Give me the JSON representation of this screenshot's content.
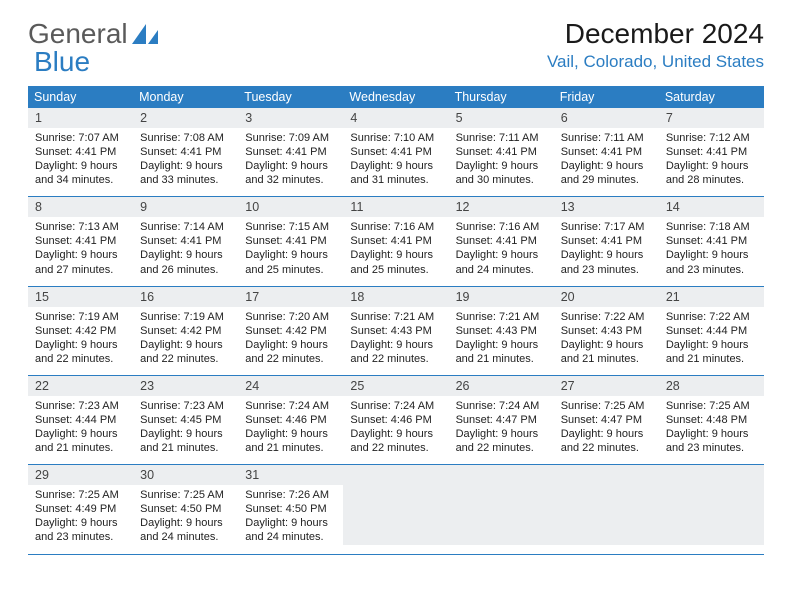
{
  "logo": {
    "word1": "General",
    "word2": "Blue",
    "word1_color": "#5a5a5a",
    "word2_color": "#2b7dc2",
    "icon_color": "#2b7dc2"
  },
  "title": "December 2024",
  "location": "Vail, Colorado, United States",
  "header_bar_color": "#2b7dc2",
  "daynum_bg": "#eceef0",
  "border_color": "#2b7dc2",
  "font_family": "Arial",
  "weekdays": [
    "Sunday",
    "Monday",
    "Tuesday",
    "Wednesday",
    "Thursday",
    "Friday",
    "Saturday"
  ],
  "weeks": [
    [
      {
        "n": "1",
        "sr": "Sunrise: 7:07 AM",
        "ss": "Sunset: 4:41 PM",
        "d1": "Daylight: 9 hours",
        "d2": "and 34 minutes."
      },
      {
        "n": "2",
        "sr": "Sunrise: 7:08 AM",
        "ss": "Sunset: 4:41 PM",
        "d1": "Daylight: 9 hours",
        "d2": "and 33 minutes."
      },
      {
        "n": "3",
        "sr": "Sunrise: 7:09 AM",
        "ss": "Sunset: 4:41 PM",
        "d1": "Daylight: 9 hours",
        "d2": "and 32 minutes."
      },
      {
        "n": "4",
        "sr": "Sunrise: 7:10 AM",
        "ss": "Sunset: 4:41 PM",
        "d1": "Daylight: 9 hours",
        "d2": "and 31 minutes."
      },
      {
        "n": "5",
        "sr": "Sunrise: 7:11 AM",
        "ss": "Sunset: 4:41 PM",
        "d1": "Daylight: 9 hours",
        "d2": "and 30 minutes."
      },
      {
        "n": "6",
        "sr": "Sunrise: 7:11 AM",
        "ss": "Sunset: 4:41 PM",
        "d1": "Daylight: 9 hours",
        "d2": "and 29 minutes."
      },
      {
        "n": "7",
        "sr": "Sunrise: 7:12 AM",
        "ss": "Sunset: 4:41 PM",
        "d1": "Daylight: 9 hours",
        "d2": "and 28 minutes."
      }
    ],
    [
      {
        "n": "8",
        "sr": "Sunrise: 7:13 AM",
        "ss": "Sunset: 4:41 PM",
        "d1": "Daylight: 9 hours",
        "d2": "and 27 minutes."
      },
      {
        "n": "9",
        "sr": "Sunrise: 7:14 AM",
        "ss": "Sunset: 4:41 PM",
        "d1": "Daylight: 9 hours",
        "d2": "and 26 minutes."
      },
      {
        "n": "10",
        "sr": "Sunrise: 7:15 AM",
        "ss": "Sunset: 4:41 PM",
        "d1": "Daylight: 9 hours",
        "d2": "and 25 minutes."
      },
      {
        "n": "11",
        "sr": "Sunrise: 7:16 AM",
        "ss": "Sunset: 4:41 PM",
        "d1": "Daylight: 9 hours",
        "d2": "and 25 minutes."
      },
      {
        "n": "12",
        "sr": "Sunrise: 7:16 AM",
        "ss": "Sunset: 4:41 PM",
        "d1": "Daylight: 9 hours",
        "d2": "and 24 minutes."
      },
      {
        "n": "13",
        "sr": "Sunrise: 7:17 AM",
        "ss": "Sunset: 4:41 PM",
        "d1": "Daylight: 9 hours",
        "d2": "and 23 minutes."
      },
      {
        "n": "14",
        "sr": "Sunrise: 7:18 AM",
        "ss": "Sunset: 4:41 PM",
        "d1": "Daylight: 9 hours",
        "d2": "and 23 minutes."
      }
    ],
    [
      {
        "n": "15",
        "sr": "Sunrise: 7:19 AM",
        "ss": "Sunset: 4:42 PM",
        "d1": "Daylight: 9 hours",
        "d2": "and 22 minutes."
      },
      {
        "n": "16",
        "sr": "Sunrise: 7:19 AM",
        "ss": "Sunset: 4:42 PM",
        "d1": "Daylight: 9 hours",
        "d2": "and 22 minutes."
      },
      {
        "n": "17",
        "sr": "Sunrise: 7:20 AM",
        "ss": "Sunset: 4:42 PM",
        "d1": "Daylight: 9 hours",
        "d2": "and 22 minutes."
      },
      {
        "n": "18",
        "sr": "Sunrise: 7:21 AM",
        "ss": "Sunset: 4:43 PM",
        "d1": "Daylight: 9 hours",
        "d2": "and 22 minutes."
      },
      {
        "n": "19",
        "sr": "Sunrise: 7:21 AM",
        "ss": "Sunset: 4:43 PM",
        "d1": "Daylight: 9 hours",
        "d2": "and 21 minutes."
      },
      {
        "n": "20",
        "sr": "Sunrise: 7:22 AM",
        "ss": "Sunset: 4:43 PM",
        "d1": "Daylight: 9 hours",
        "d2": "and 21 minutes."
      },
      {
        "n": "21",
        "sr": "Sunrise: 7:22 AM",
        "ss": "Sunset: 4:44 PM",
        "d1": "Daylight: 9 hours",
        "d2": "and 21 minutes."
      }
    ],
    [
      {
        "n": "22",
        "sr": "Sunrise: 7:23 AM",
        "ss": "Sunset: 4:44 PM",
        "d1": "Daylight: 9 hours",
        "d2": "and 21 minutes."
      },
      {
        "n": "23",
        "sr": "Sunrise: 7:23 AM",
        "ss": "Sunset: 4:45 PM",
        "d1": "Daylight: 9 hours",
        "d2": "and 21 minutes."
      },
      {
        "n": "24",
        "sr": "Sunrise: 7:24 AM",
        "ss": "Sunset: 4:46 PM",
        "d1": "Daylight: 9 hours",
        "d2": "and 21 minutes."
      },
      {
        "n": "25",
        "sr": "Sunrise: 7:24 AM",
        "ss": "Sunset: 4:46 PM",
        "d1": "Daylight: 9 hours",
        "d2": "and 22 minutes."
      },
      {
        "n": "26",
        "sr": "Sunrise: 7:24 AM",
        "ss": "Sunset: 4:47 PM",
        "d1": "Daylight: 9 hours",
        "d2": "and 22 minutes."
      },
      {
        "n": "27",
        "sr": "Sunrise: 7:25 AM",
        "ss": "Sunset: 4:47 PM",
        "d1": "Daylight: 9 hours",
        "d2": "and 22 minutes."
      },
      {
        "n": "28",
        "sr": "Sunrise: 7:25 AM",
        "ss": "Sunset: 4:48 PM",
        "d1": "Daylight: 9 hours",
        "d2": "and 23 minutes."
      }
    ],
    [
      {
        "n": "29",
        "sr": "Sunrise: 7:25 AM",
        "ss": "Sunset: 4:49 PM",
        "d1": "Daylight: 9 hours",
        "d2": "and 23 minutes."
      },
      {
        "n": "30",
        "sr": "Sunrise: 7:25 AM",
        "ss": "Sunset: 4:50 PM",
        "d1": "Daylight: 9 hours",
        "d2": "and 24 minutes."
      },
      {
        "n": "31",
        "sr": "Sunrise: 7:26 AM",
        "ss": "Sunset: 4:50 PM",
        "d1": "Daylight: 9 hours",
        "d2": "and 24 minutes."
      },
      {
        "empty": true
      },
      {
        "empty": true
      },
      {
        "empty": true
      },
      {
        "empty": true
      }
    ]
  ]
}
